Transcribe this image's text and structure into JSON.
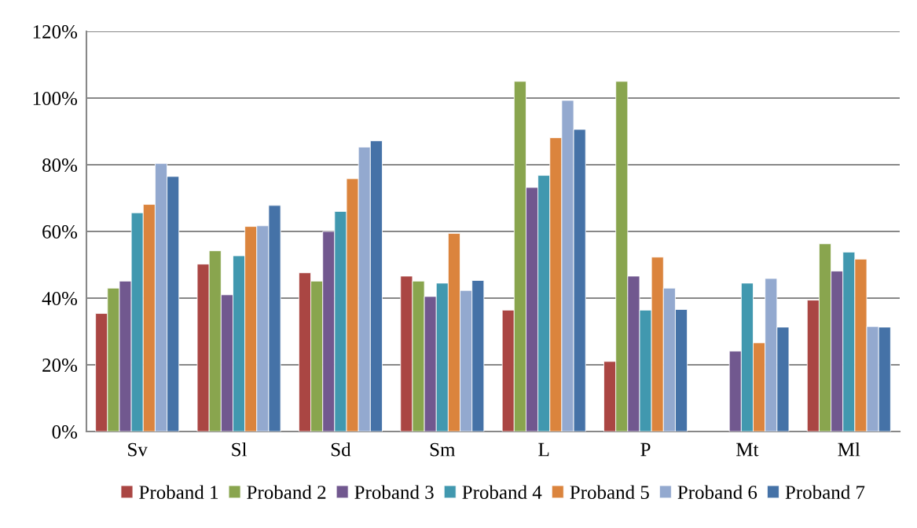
{
  "chart_data": {
    "type": "bar",
    "categories": [
      "Sv",
      "Sl",
      "Sd",
      "Sm",
      "L",
      "P",
      "Mt",
      "Ml"
    ],
    "series": [
      {
        "name": "Proband 1",
        "color": "#aa4643",
        "values": [
          35.4,
          50.2,
          47.6,
          46.6,
          36.4,
          21.0,
          null,
          39.4
        ]
      },
      {
        "name": "Proband 2",
        "color": "#89a54e",
        "values": [
          43.0,
          54.2,
          45.1,
          45.1,
          105.0,
          105.0,
          null,
          56.3
        ]
      },
      {
        "name": "Proband 3",
        "color": "#71588f",
        "values": [
          45.1,
          41.0,
          60.0,
          40.5,
          73.2,
          46.6,
          24.1,
          48.1
        ]
      },
      {
        "name": "Proband 4",
        "color": "#4198af",
        "values": [
          65.6,
          52.7,
          66.0,
          44.5,
          76.8,
          36.4,
          44.5,
          53.8
        ]
      },
      {
        "name": "Proband 5",
        "color": "#db843d",
        "values": [
          68.1,
          61.5,
          75.8,
          59.4,
          88.1,
          52.3,
          26.6,
          51.7
        ]
      },
      {
        "name": "Proband 6",
        "color": "#93a9cf",
        "values": [
          80.4,
          61.7,
          85.3,
          42.3,
          99.3,
          43.0,
          45.9,
          31.5
        ]
      },
      {
        "name": "Proband 7",
        "color": "#4572a7",
        "values": [
          76.5,
          67.8,
          87.2,
          45.3,
          90.6,
          36.6,
          31.3,
          31.3
        ]
      }
    ],
    "ylim": [
      0,
      120
    ],
    "yticks": [
      {
        "value": 0,
        "label": "0%"
      },
      {
        "value": 20,
        "label": "20%"
      },
      {
        "value": 40,
        "label": "40%"
      },
      {
        "value": 60,
        "label": "60%"
      },
      {
        "value": 80,
        "label": "80%"
      },
      {
        "value": 100,
        "label": "100%"
      },
      {
        "value": 120,
        "label": "120%"
      }
    ],
    "grid": "y",
    "legend": "bottom"
  }
}
